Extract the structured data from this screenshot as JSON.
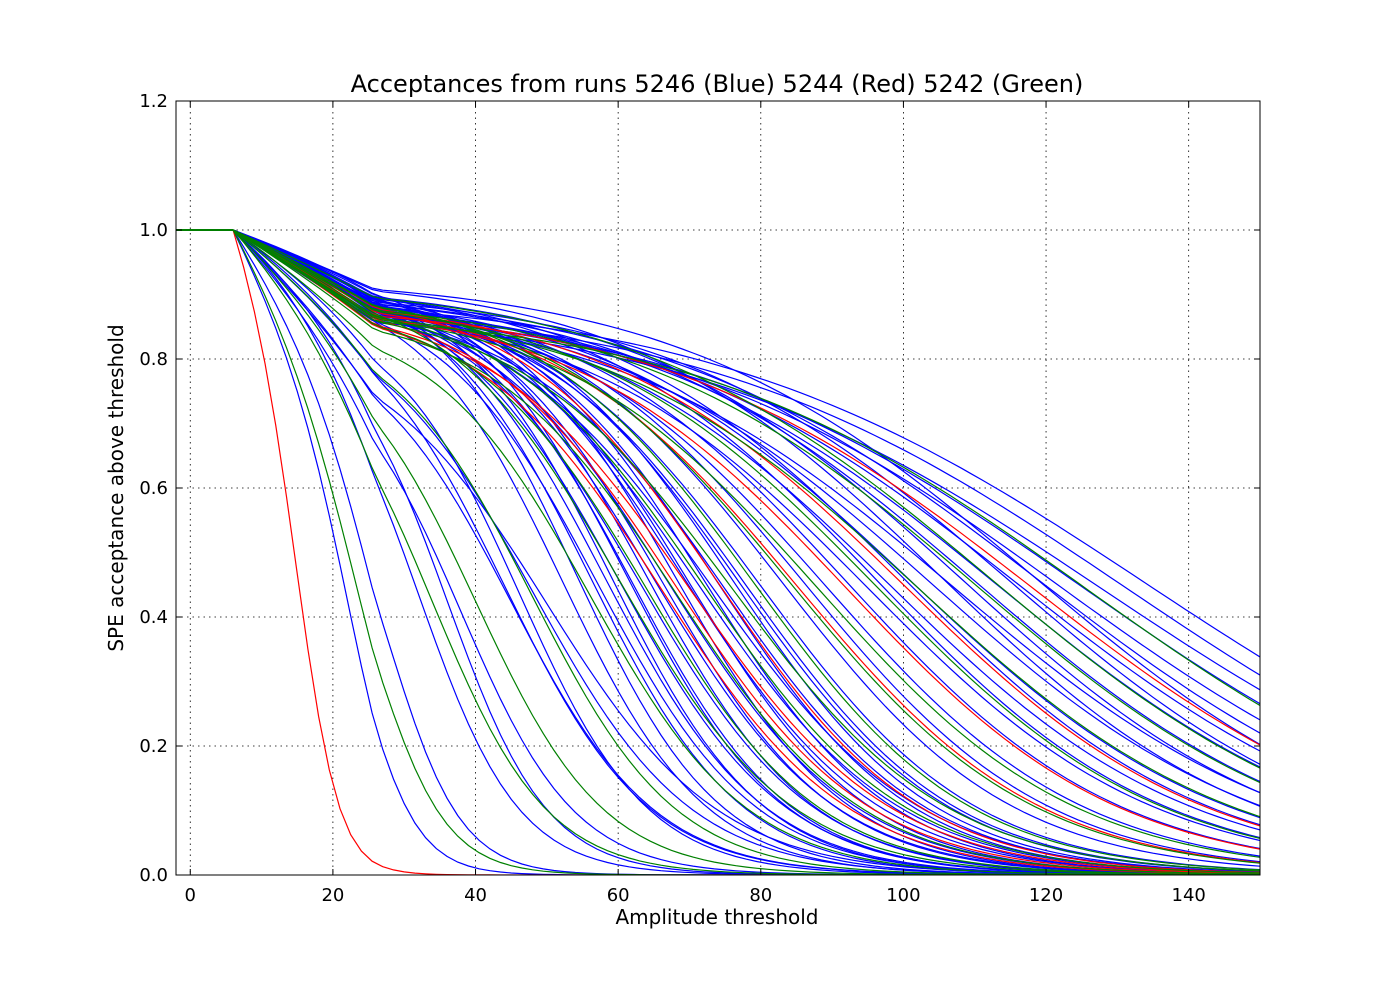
{
  "chart_data": {
    "type": "line",
    "title": "Acceptances from runs 5246 (Blue) 5244 (Red) 5242 (Green)",
    "xlabel": "Amplitude threshold",
    "ylabel": "SPE acceptance above threshold",
    "xlim": [
      -2,
      150
    ],
    "ylim": [
      0,
      1.2
    ],
    "xticks": [
      0,
      20,
      40,
      60,
      80,
      100,
      120,
      140
    ],
    "yticks": [
      0.0,
      0.2,
      0.4,
      0.6,
      0.8,
      1.0,
      1.2
    ],
    "ytick_labels": [
      "0.0",
      "0.2",
      "0.4",
      "0.6",
      "0.8",
      "1.0",
      "1.2"
    ],
    "grid": true,
    "legend": "none",
    "series": [
      {
        "color": "#0000ff",
        "curves": [
          [
            59,
            10.5,
            0.92
          ],
          [
            62,
            11,
            0.9
          ],
          [
            64,
            11.5,
            0.92
          ],
          [
            66,
            12,
            0.91
          ],
          [
            68,
            12,
            0.92
          ],
          [
            70,
            12.5,
            0.9
          ],
          [
            72,
            13,
            0.91
          ],
          [
            74,
            13.5,
            0.9
          ],
          [
            76,
            14,
            0.91
          ],
          [
            78,
            14.5,
            0.89
          ],
          [
            54,
            10,
            0.93
          ],
          [
            56,
            10.5,
            0.92
          ],
          [
            57,
            11,
            0.9
          ],
          [
            60,
            11.5,
            0.91
          ],
          [
            63,
            12,
            0.9
          ],
          [
            65,
            12.5,
            0.91
          ],
          [
            67,
            13,
            0.9
          ],
          [
            69,
            13.5,
            0.92
          ],
          [
            71,
            14,
            0.9
          ],
          [
            73,
            14.5,
            0.89
          ],
          [
            61,
            11,
            0.93
          ],
          [
            75,
            14,
            0.88
          ],
          [
            77,
            14.5,
            0.9
          ],
          [
            52,
            10,
            0.91
          ],
          [
            58,
            11,
            0.92
          ],
          [
            80,
            15,
            0.89
          ],
          [
            83,
            16,
            0.9
          ],
          [
            86,
            17,
            0.9
          ],
          [
            89,
            18,
            0.89
          ],
          [
            92,
            19,
            0.9
          ],
          [
            95,
            20,
            0.88
          ],
          [
            98,
            21,
            0.89
          ],
          [
            101,
            22,
            0.9
          ],
          [
            104,
            23,
            0.89
          ],
          [
            107,
            24,
            0.88
          ],
          [
            110,
            24,
            0.9
          ],
          [
            113,
            25,
            0.89
          ],
          [
            116,
            26,
            0.89
          ],
          [
            119,
            27,
            0.9
          ],
          [
            122,
            28,
            0.88
          ],
          [
            125,
            29,
            0.88
          ],
          [
            128,
            30,
            0.87
          ],
          [
            131,
            30,
            0.88
          ],
          [
            134,
            31,
            0.89
          ],
          [
            100,
            21,
            0.91
          ],
          [
            105,
            22,
            0.92
          ],
          [
            115,
            24,
            0.9
          ],
          [
            108,
            23,
            0.91
          ],
          [
            118,
            25,
            0.92
          ],
          [
            96,
            20,
            0.91
          ],
          [
            44,
            10,
            0.88
          ],
          [
            48,
            11,
            0.86
          ],
          [
            36,
            7,
            0.84
          ],
          [
            32,
            7,
            0.85
          ],
          [
            28,
            5,
            0.7
          ],
          [
            50,
            12,
            0.82
          ],
          [
            24,
            4,
            0.6
          ],
          [
            38,
            8,
            0.8
          ],
          [
            45,
            10,
            0.83
          ],
          [
            46,
            9,
            0.87
          ]
        ]
      },
      {
        "color": "#ff0000",
        "curves": [
          [
            66,
            13,
            0.88
          ],
          [
            68,
            13.5,
            0.89
          ],
          [
            70,
            14,
            0.88
          ],
          [
            85,
            17,
            0.89
          ],
          [
            100,
            21,
            0.89
          ],
          [
            118,
            26,
            0.88
          ],
          [
            74,
            14,
            0.9
          ],
          [
            92,
            19,
            0.88
          ],
          [
            16,
            3,
            0.5
          ]
        ]
      },
      {
        "color": "#008000",
        "curves": [
          [
            64,
            12,
            0.88
          ],
          [
            72,
            14,
            0.89
          ],
          [
            79,
            15,
            0.9
          ],
          [
            88,
            18,
            0.88
          ],
          [
            96,
            20,
            0.89
          ],
          [
            102,
            22,
            0.88
          ],
          [
            110,
            24,
            0.89
          ],
          [
            126,
            28,
            0.87
          ],
          [
            56,
            11,
            0.86
          ],
          [
            48,
            10,
            0.85
          ],
          [
            40,
            9,
            0.83
          ],
          [
            34,
            8,
            0.82
          ],
          [
            26,
            5,
            0.65
          ],
          [
            60,
            12,
            0.91
          ],
          [
            112,
            25,
            0.91
          ],
          [
            84,
            17,
            0.9
          ],
          [
            76,
            15,
            0.88
          ],
          [
            68,
            13,
            0.87
          ]
        ]
      }
    ]
  }
}
